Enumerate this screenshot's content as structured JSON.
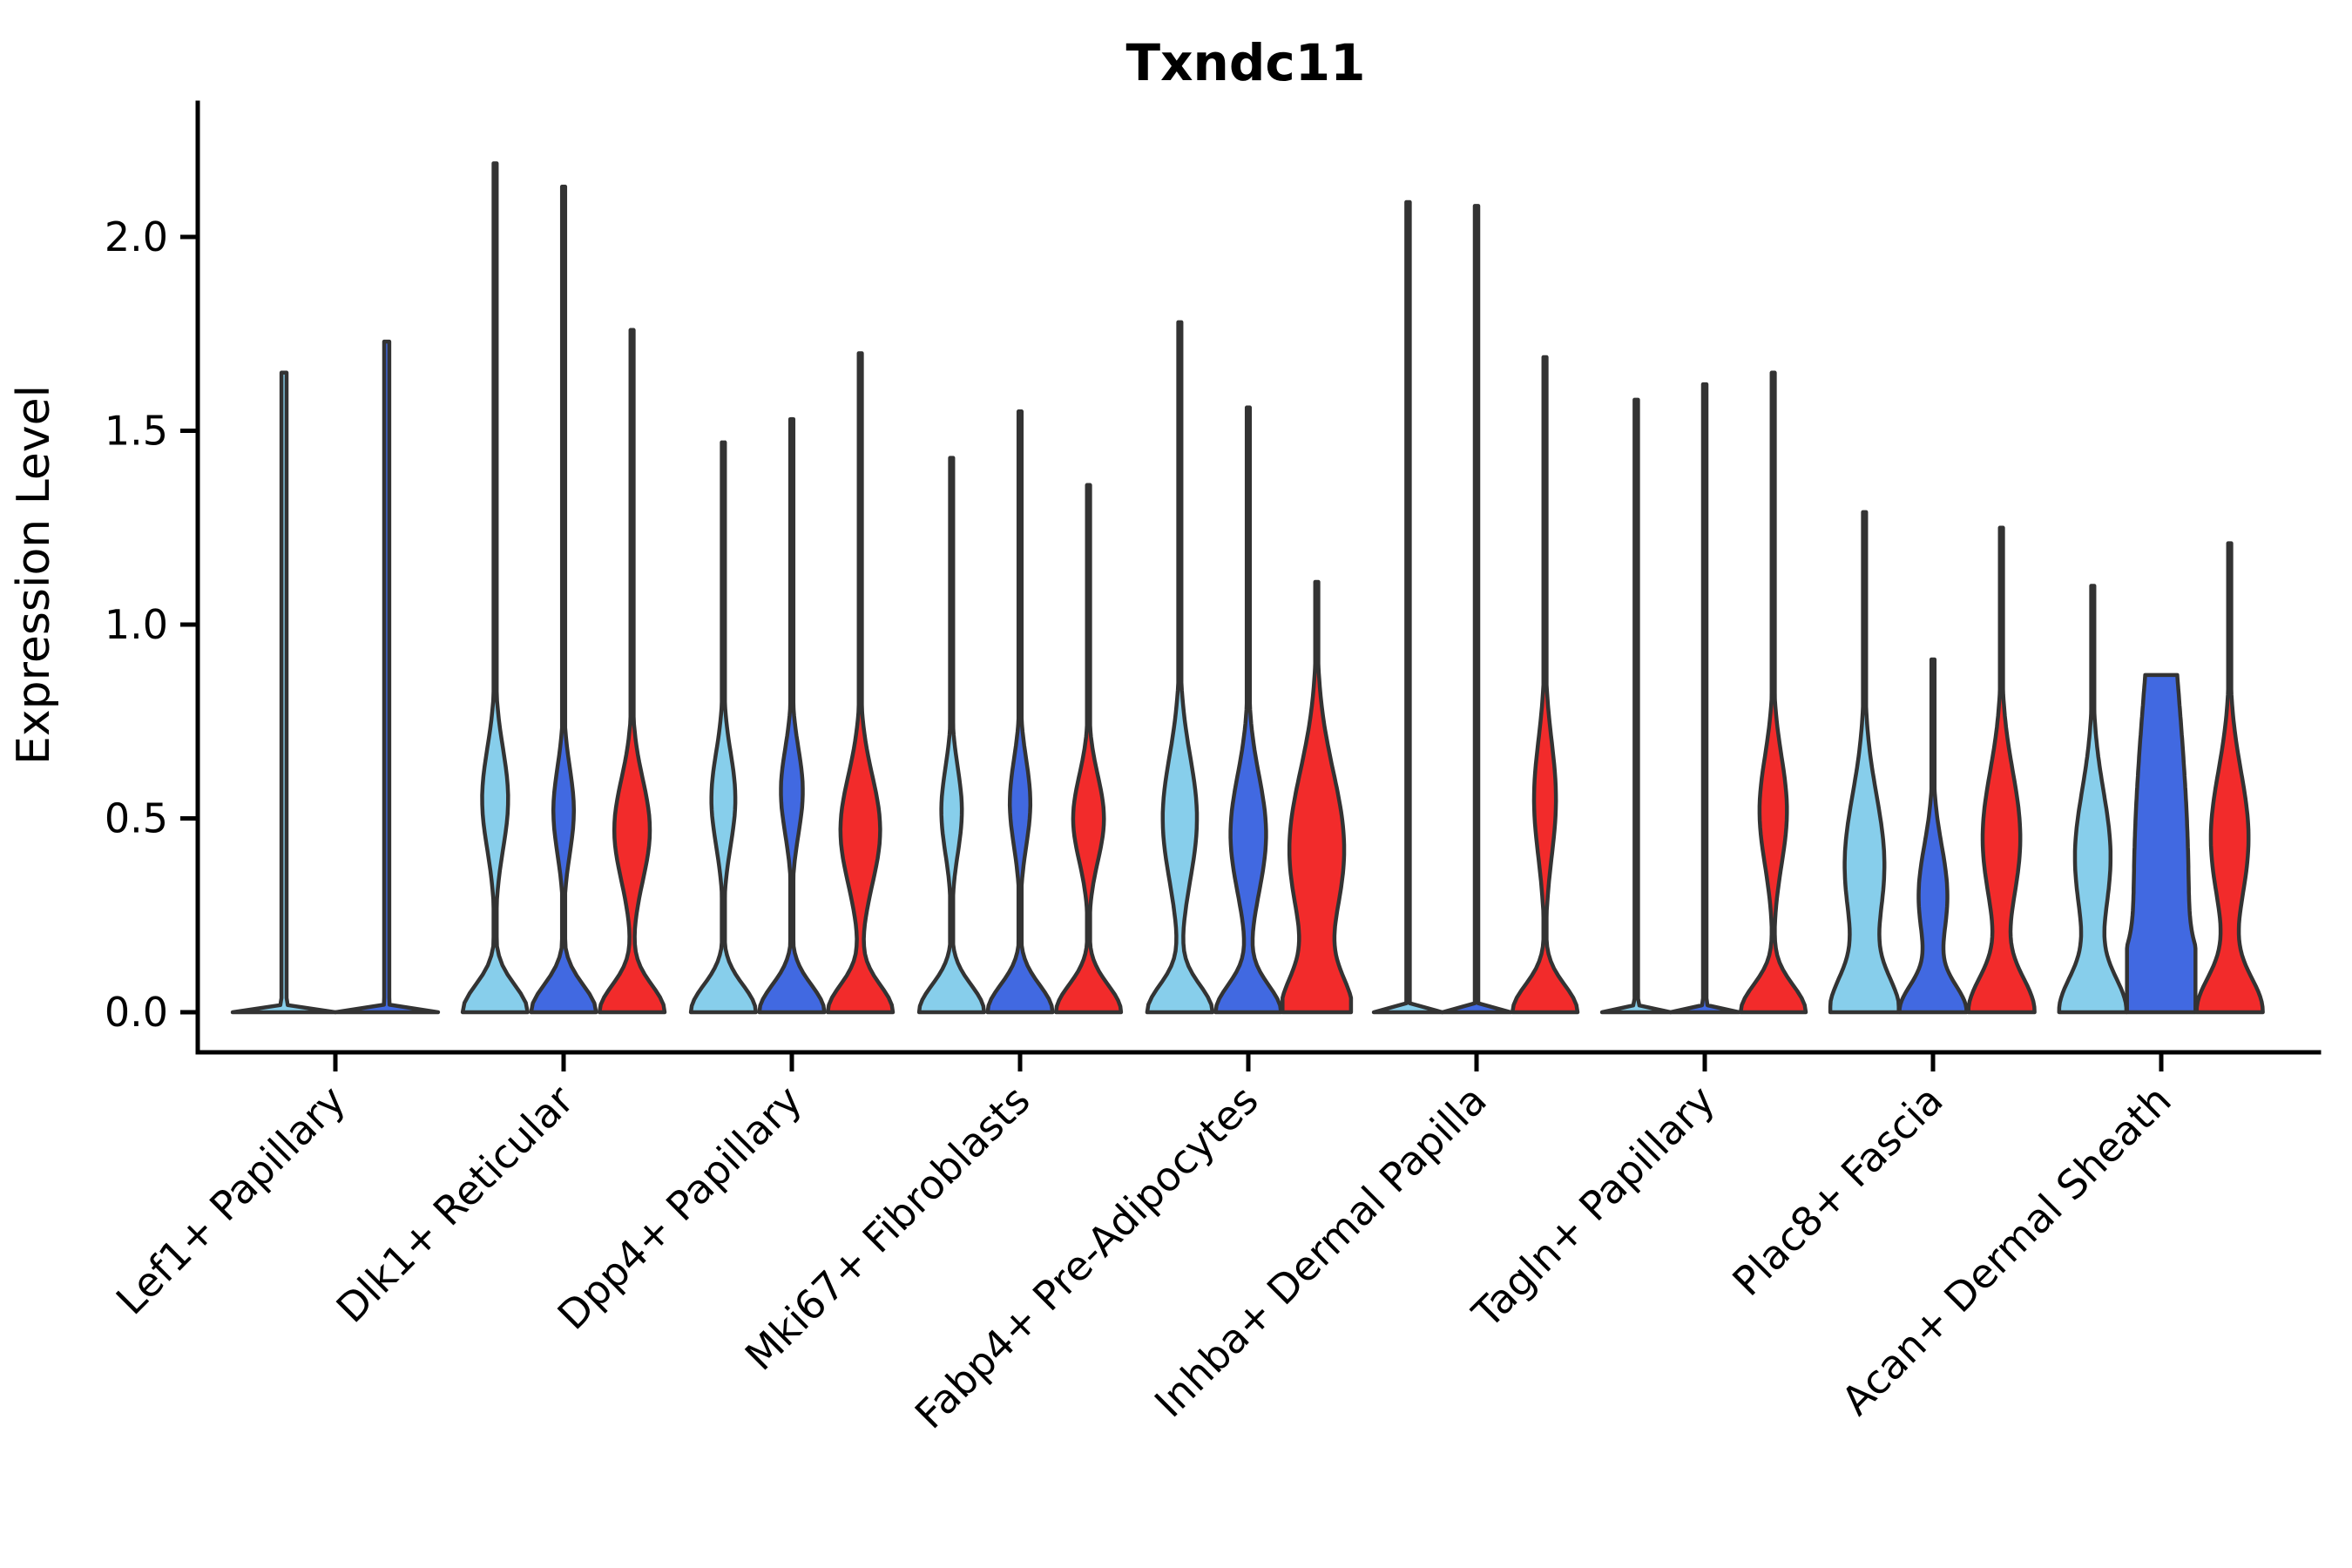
{
  "chart_data": {
    "type": "violin",
    "title": "Txndc11",
    "ylabel": "Expression Level",
    "xlabel": "",
    "ylim": [
      -0.1,
      2.35
    ],
    "yticks": [
      0.0,
      0.5,
      1.0,
      1.5,
      2.0
    ],
    "ytick_labels": [
      "0.0",
      "0.5",
      "1.0",
      "1.5",
      "2.0"
    ],
    "grid": false,
    "legend": "none",
    "conditions": [
      {
        "id": "light-blue",
        "color": "#87CEEB"
      },
      {
        "id": "royal-blue",
        "color": "#4169E1"
      },
      {
        "id": "red",
        "color": "#F22B2B"
      }
    ],
    "outline_color": "#333333",
    "categories": [
      "Lef1+ Papillary",
      "Dlk1+ Reticular",
      "Dpp4+ Papillary",
      "Mki67+ Fibroblasts",
      "Fabp4+ Pre-Adipocytes",
      "Inhba+ Dermal Papilla",
      "Tagln+ Papillary",
      "Plac8+ Fascia",
      "Acan+ Dermal Sheath"
    ],
    "violins": [
      {
        "category": "Lef1+ Papillary",
        "parts": [
          {
            "condition": 0,
            "peak": 1.65,
            "collapsed": true
          },
          {
            "condition": 1,
            "peak": 1.73,
            "collapsed": true
          }
        ]
      },
      {
        "category": "Dlk1+ Reticular",
        "parts": [
          {
            "condition": 0,
            "peak": 2.19,
            "bulge_center": 0.55,
            "bulge_sigma": 0.13,
            "bulge_halfwidth": 0.38
          },
          {
            "condition": 1,
            "peak": 2.13,
            "bulge_center": 0.52,
            "bulge_sigma": 0.11,
            "bulge_halfwidth": 0.3
          },
          {
            "condition": 2,
            "peak": 1.76,
            "bulge_center": 0.47,
            "bulge_sigma": 0.13,
            "bulge_halfwidth": 0.52
          }
        ]
      },
      {
        "category": "Dpp4+ Papillary",
        "parts": [
          {
            "condition": 0,
            "peak": 1.47,
            "bulge_center": 0.55,
            "bulge_sigma": 0.12,
            "bulge_halfwidth": 0.35
          },
          {
            "condition": 1,
            "peak": 1.53,
            "bulge_center": 0.57,
            "bulge_sigma": 0.11,
            "bulge_halfwidth": 0.32
          },
          {
            "condition": 2,
            "peak": 1.7,
            "bulge_center": 0.47,
            "bulge_sigma": 0.14,
            "bulge_halfwidth": 0.58
          }
        ]
      },
      {
        "category": "Mki67+ Fibroblasts",
        "parts": [
          {
            "condition": 0,
            "peak": 1.43,
            "bulge_center": 0.52,
            "bulge_sigma": 0.11,
            "bulge_halfwidth": 0.3
          },
          {
            "condition": 1,
            "peak": 1.55,
            "bulge_center": 0.54,
            "bulge_sigma": 0.11,
            "bulge_halfwidth": 0.3
          },
          {
            "condition": 2,
            "peak": 1.36,
            "bulge_center": 0.5,
            "bulge_sigma": 0.11,
            "bulge_halfwidth": 0.45
          }
        ]
      },
      {
        "category": "Fabp4+ Pre-Adipocytes",
        "parts": [
          {
            "condition": 0,
            "peak": 1.78,
            "bulge_center": 0.5,
            "bulge_sigma": 0.16,
            "bulge_halfwidth": 0.5
          },
          {
            "condition": 1,
            "peak": 1.56,
            "bulge_center": 0.46,
            "bulge_sigma": 0.15,
            "bulge_halfwidth": 0.52
          },
          {
            "condition": 2,
            "peak": 1.11,
            "bulge_center": 0.42,
            "bulge_sigma": 0.2,
            "bulge_halfwidth": 0.8,
            "base_sigma": 0.09
          }
        ]
      },
      {
        "category": "Inhba+ Dermal Papilla",
        "parts": [
          {
            "condition": 0,
            "peak": 2.09,
            "collapsed": true
          },
          {
            "condition": 1,
            "peak": 2.08,
            "collapsed": true
          },
          {
            "condition": 2,
            "peak": 1.69,
            "bulge_center": 0.55,
            "bulge_sigma": 0.15,
            "bulge_halfwidth": 0.32
          }
        ]
      },
      {
        "category": "Tagln+ Papillary",
        "parts": [
          {
            "condition": 0,
            "peak": 1.58,
            "collapsed": true
          },
          {
            "condition": 1,
            "peak": 1.62,
            "collapsed": true
          },
          {
            "condition": 2,
            "peak": 1.65,
            "bulge_center": 0.52,
            "bulge_sigma": 0.14,
            "bulge_halfwidth": 0.4
          }
        ]
      },
      {
        "category": "Plac8+ Fascia",
        "parts": [
          {
            "condition": 0,
            "peak": 1.29,
            "bulge_center": 0.38,
            "bulge_sigma": 0.18,
            "bulge_halfwidth": 0.58,
            "base_sigma": 0.09
          },
          {
            "condition": 1,
            "peak": 0.91,
            "bulge_center": 0.3,
            "bulge_sigma": 0.13,
            "bulge_halfwidth": 0.42
          },
          {
            "condition": 2,
            "peak": 1.25,
            "bulge_center": 0.45,
            "bulge_sigma": 0.17,
            "bulge_halfwidth": 0.55,
            "base_sigma": 0.09
          }
        ]
      },
      {
        "category": "Acan+ Dermal Sheath",
        "parts": [
          {
            "condition": 0,
            "peak": 1.1,
            "bulge_center": 0.4,
            "bulge_sigma": 0.17,
            "bulge_halfwidth": 0.52,
            "base_sigma": 0.09
          },
          {
            "condition": 1,
            "peak": 0.87,
            "bulge_center": 0.3,
            "bulge_sigma": 0.55,
            "bulge_halfwidth": 0.8,
            "base_sigma": 0.1,
            "flat_top": true
          },
          {
            "condition": 2,
            "peak": 1.21,
            "bulge_center": 0.45,
            "bulge_sigma": 0.17,
            "bulge_halfwidth": 0.55,
            "base_sigma": 0.09
          }
        ]
      }
    ]
  }
}
